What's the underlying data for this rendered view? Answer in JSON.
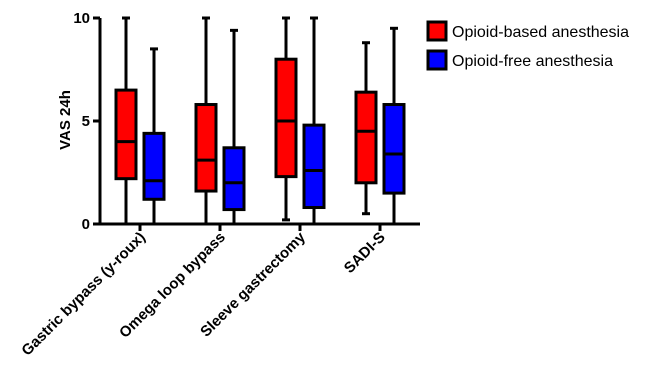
{
  "chart_data": {
    "type": "box",
    "ylabel": "VAS 24h",
    "xlabel": "",
    "ylim": [
      0,
      10
    ],
    "yticks": [
      "0",
      "5",
      "10"
    ],
    "categories": [
      "Gastric bypass (y-roux)",
      "Omega loop bypass",
      "Sleeve gastrectomy",
      "SADI-S"
    ],
    "legend_position": "top-right",
    "grid": false,
    "series": [
      {
        "name": "Opioid-based anesthesia",
        "color": "#ff0000",
        "boxes": [
          {
            "min": 0,
            "q1": 2.2,
            "median": 4.0,
            "q3": 6.5,
            "max": 10
          },
          {
            "min": 0,
            "q1": 1.6,
            "median": 3.1,
            "q3": 5.8,
            "max": 10
          },
          {
            "min": 0.2,
            "q1": 2.3,
            "median": 5.0,
            "q3": 8.0,
            "max": 10
          },
          {
            "min": 0.5,
            "q1": 2.0,
            "median": 4.5,
            "q3": 6.4,
            "max": 8.8
          }
        ]
      },
      {
        "name": "Opioid-free anesthesia",
        "color": "#0000ff",
        "boxes": [
          {
            "min": 0,
            "q1": 1.2,
            "median": 2.1,
            "q3": 4.4,
            "max": 8.5
          },
          {
            "min": 0,
            "q1": 0.7,
            "median": 2.0,
            "q3": 3.7,
            "max": 9.4
          },
          {
            "min": 0,
            "q1": 0.8,
            "median": 2.6,
            "q3": 4.8,
            "max": 10
          },
          {
            "min": 0,
            "q1": 1.5,
            "median": 3.4,
            "q3": 5.8,
            "max": 9.5
          }
        ]
      }
    ]
  }
}
